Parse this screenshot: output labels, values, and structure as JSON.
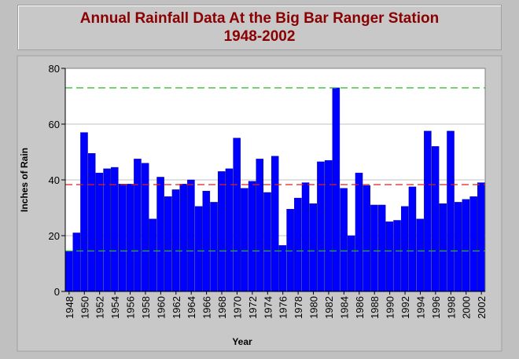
{
  "chart_data": {
    "type": "bar",
    "title": "Annual Rainfall Data At the Big Bar Ranger Station",
    "subtitle": "1948-2002",
    "xlabel": "Year",
    "ylabel": "Inches of Rain",
    "ylim": [
      0,
      80
    ],
    "yticks": [
      0,
      20,
      40,
      60,
      80
    ],
    "categories": [
      "1948",
      "1949",
      "1950",
      "1951",
      "1952",
      "1953",
      "1954",
      "1955",
      "1956",
      "1957",
      "1958",
      "1959",
      "1960",
      "1961",
      "1962",
      "1963",
      "1964",
      "1965",
      "1966",
      "1967",
      "1968",
      "1969",
      "1970",
      "1971",
      "1972",
      "1973",
      "1974",
      "1975",
      "1976",
      "1977",
      "1978",
      "1979",
      "1980",
      "1981",
      "1982",
      "1983",
      "1984",
      "1985",
      "1986",
      "1987",
      "1988",
      "1989",
      "1990",
      "1991",
      "1992",
      "1993",
      "1994",
      "1995",
      "1996",
      "1997",
      "1998",
      "1999",
      "2000",
      "2001",
      "2002"
    ],
    "values": [
      14.5,
      21,
      57,
      49.5,
      42.5,
      44,
      44.5,
      38.5,
      38.5,
      47.5,
      46,
      26,
      41,
      34,
      36.5,
      38.5,
      40,
      30.5,
      36,
      32,
      43,
      44,
      55,
      37,
      39.5,
      47.5,
      35.5,
      48.5,
      16.5,
      29.5,
      33.5,
      39,
      31.5,
      46.5,
      47,
      73,
      37,
      20,
      42.5,
      38,
      31,
      31,
      25,
      25.5,
      30.5,
      37.5,
      26,
      57.5,
      52,
      31.5,
      57.5,
      32,
      33,
      34,
      39
    ],
    "xtick_labels": [
      "1948",
      "1950",
      "1952",
      "1954",
      "1956",
      "1958",
      "1960",
      "1962",
      "1964",
      "1966",
      "1968",
      "1970",
      "1972",
      "1974",
      "1976",
      "1978",
      "1980",
      "1982",
      "1984",
      "1986",
      "1988",
      "1990",
      "1992",
      "1994",
      "1996",
      "1998",
      "2000",
      "2002"
    ],
    "reference_lines": [
      {
        "value": 73,
        "color": "#22bb22"
      },
      {
        "value": 38.3,
        "color": "#dd2222"
      },
      {
        "value": 14.5,
        "color": "#22bb22"
      }
    ],
    "bar_color": "#0000ff",
    "grid": true,
    "legend": "none"
  }
}
